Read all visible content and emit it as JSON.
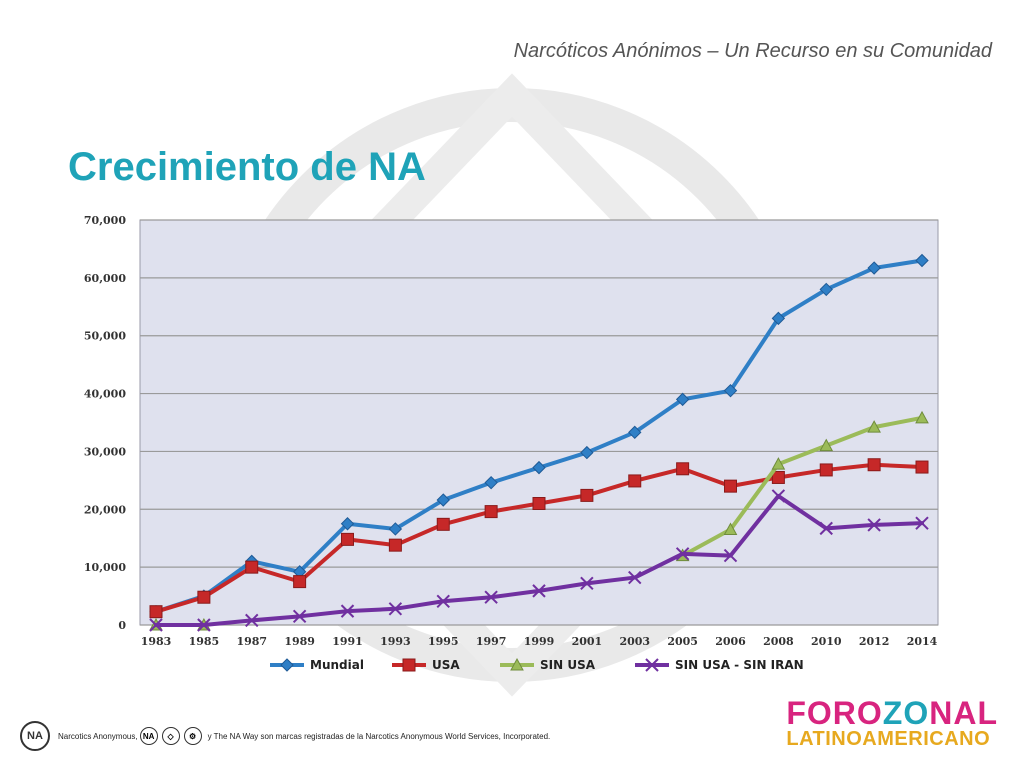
{
  "header": {
    "subtitle": "Narcóticos Anónimos – Un Recurso en su Comunidad"
  },
  "slide": {
    "title": "Crecimiento de NA"
  },
  "footer": {
    "mark_text": "NA",
    "text_before": "Narcotics Anonymous,",
    "text_after": "y The NA Way son marcas registradas de la Narcotics Anonymous World Services, Incorporated."
  },
  "logo": {
    "line1_a": "FORO",
    "line1_b": "ZO",
    "line1_c": "NAL",
    "line2": "LATINOAMERICANO"
  },
  "colors": {
    "title": "#1fa3b8",
    "plot_bg": "#dfe1ee",
    "mundial": "#2f7fc6",
    "usa": "#c62828",
    "sin_usa": "#9bbb59",
    "sin_usa_sin_iran": "#7030a0"
  },
  "chart_data": {
    "type": "line",
    "x": [
      "1983",
      "1985",
      "1987",
      "1989",
      "1991",
      "1993",
      "1995",
      "1997",
      "1999",
      "2001",
      "2003",
      "2005",
      "2006",
      "2008",
      "2010",
      "2012",
      "2014"
    ],
    "y_ticks": [
      "0",
      "10,000",
      "20,000",
      "30,000",
      "40,000",
      "50,000",
      "60,000",
      "70,000"
    ],
    "ylim": [
      0,
      70000
    ],
    "grid": true,
    "legend_position": "bottom",
    "series": [
      {
        "name": "Mundial",
        "color": "#2f7fc6",
        "marker": "diamond",
        "values": [
          2300,
          5000,
          11000,
          9200,
          17500,
          16600,
          21600,
          24600,
          27200,
          29800,
          33300,
          39000,
          40500,
          53000,
          58000,
          61700,
          63000
        ]
      },
      {
        "name": "USA",
        "color": "#c62828",
        "marker": "square",
        "values": [
          2300,
          4800,
          10000,
          7500,
          14800,
          13800,
          17400,
          19600,
          21000,
          22400,
          24900,
          27000,
          24000,
          25500,
          26800,
          27700,
          27300
        ]
      },
      {
        "name": "SIN USA",
        "color": "#9bbb59",
        "marker": "triangle",
        "values": [
          0,
          0,
          null,
          null,
          null,
          null,
          null,
          null,
          null,
          null,
          null,
          12000,
          16500,
          27800,
          31000,
          34200,
          35800
        ]
      },
      {
        "name": "SIN USA - SIN IRAN",
        "color": "#7030a0",
        "marker": "x",
        "values": [
          0,
          0,
          800,
          1500,
          2400,
          2800,
          4100,
          4800,
          5900,
          7200,
          8200,
          12300,
          12000,
          22300,
          16700,
          17300,
          17600
        ]
      }
    ]
  }
}
